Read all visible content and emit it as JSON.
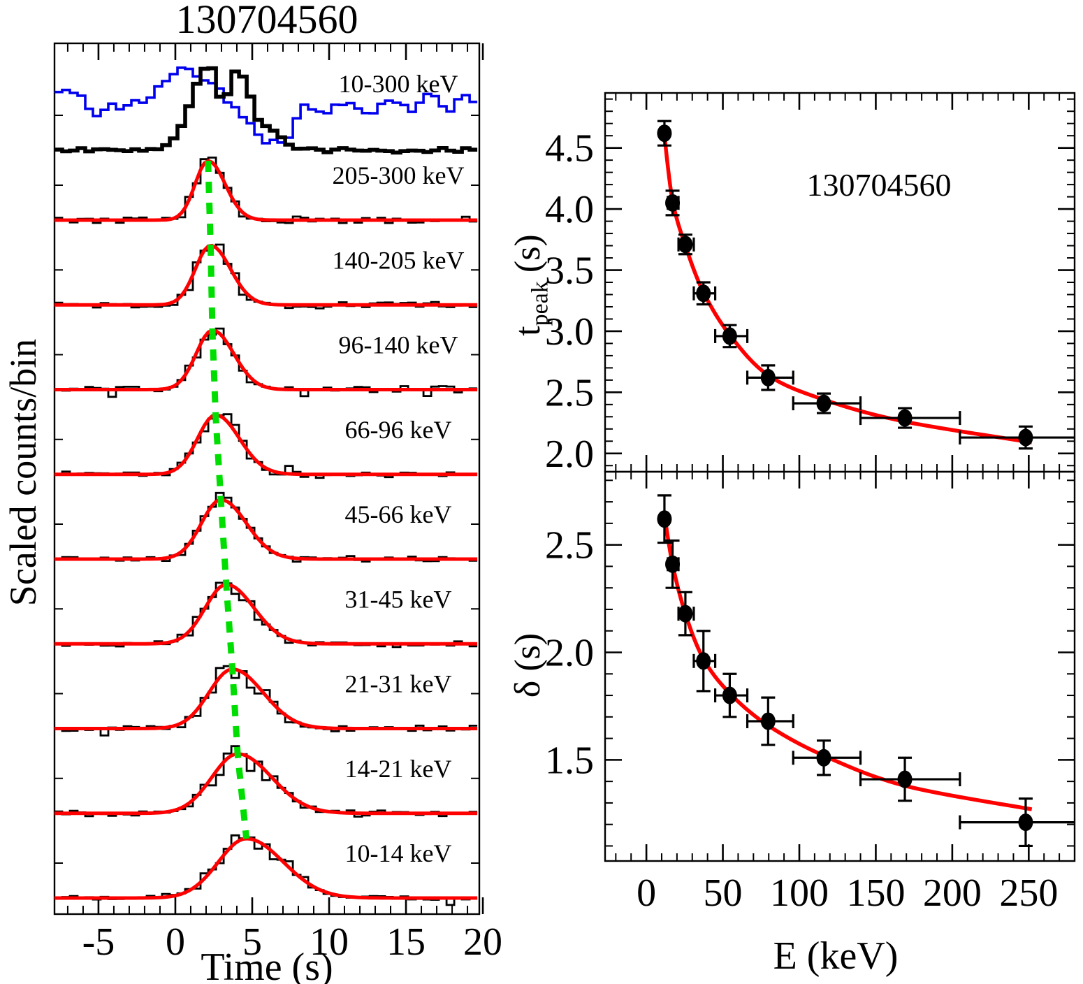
{
  "title": "130704560",
  "colors": {
    "data": "#000000",
    "fit_curve": "#ff0000",
    "peak_drift_line": "#00dd00",
    "secondary_lightcurve": "#0000ee",
    "background": "#ffffff"
  },
  "chart_data": [
    {
      "id": "stacked_lightcurves",
      "type": "line",
      "title": "130704560",
      "xlabel": "Time (s)",
      "ylabel": "Scaled counts/bin",
      "xlim": [
        -7.86,
        19.77
      ],
      "x_ticks": [
        -5,
        0,
        5,
        10,
        15,
        20
      ],
      "x_minor_step": 1,
      "bin_width_s": 0.5,
      "legend_position": "in-panel right labels",
      "grid": false,
      "total_band": {
        "label": "10-300 keV",
        "black_components": [
          {
            "t": 2.2,
            "sl": 1.15,
            "sr": 0.7,
            "a": 0.985
          },
          {
            "t": 4.05,
            "sl": 0.75,
            "sr": 0.95,
            "a": 0.93
          },
          {
            "t": 5.7,
            "sl": 0.9,
            "sr": 1.0,
            "a": 0.3
          }
        ],
        "blue_points": [
          [
            -7.8,
            0.64
          ],
          [
            -7.0,
            0.71
          ],
          [
            -6.0,
            0.61
          ],
          [
            -5.0,
            0.39
          ],
          [
            -4.3,
            0.53
          ],
          [
            -3.5,
            0.47
          ],
          [
            -2.6,
            0.59
          ],
          [
            -2.0,
            0.52
          ],
          [
            -1.2,
            0.71
          ],
          [
            -0.5,
            0.84
          ],
          [
            0.3,
            0.97
          ],
          [
            0.9,
            0.94
          ],
          [
            1.6,
            0.8
          ],
          [
            2.3,
            0.84
          ],
          [
            3.0,
            0.66
          ],
          [
            3.6,
            0.53
          ],
          [
            4.2,
            0.43
          ],
          [
            4.8,
            0.35
          ],
          [
            5.4,
            0.19
          ],
          [
            6.0,
            0.1
          ],
          [
            6.6,
            0.14
          ],
          [
            7.2,
            0.08
          ],
          [
            7.8,
            0.34
          ],
          [
            8.4,
            0.55
          ],
          [
            9.0,
            0.47
          ],
          [
            9.6,
            0.4
          ],
          [
            10.4,
            0.52
          ],
          [
            11.2,
            0.59
          ],
          [
            12.0,
            0.45
          ],
          [
            12.8,
            0.39
          ],
          [
            13.4,
            0.55
          ],
          [
            14.0,
            0.62
          ],
          [
            14.6,
            0.52
          ],
          [
            15.4,
            0.45
          ],
          [
            16.0,
            0.59
          ],
          [
            16.6,
            0.68
          ],
          [
            17.2,
            0.53
          ],
          [
            18.0,
            0.47
          ],
          [
            18.6,
            0.68
          ],
          [
            19.2,
            0.59
          ],
          [
            19.8,
            0.53
          ]
        ]
      },
      "bands": [
        {
          "label": "205-300 keV",
          "t_peak": 2.13,
          "delta": 1.21
        },
        {
          "label": "140-205 keV",
          "t_peak": 2.29,
          "delta": 1.41
        },
        {
          "label": "96-140 keV",
          "t_peak": 2.41,
          "delta": 1.51
        },
        {
          "label": "66-96 keV",
          "t_peak": 2.62,
          "delta": 1.68
        },
        {
          "label": "45-66 keV",
          "t_peak": 2.96,
          "delta": 1.8
        },
        {
          "label": "31-45 keV",
          "t_peak": 3.31,
          "delta": 1.96
        },
        {
          "label": "21-31 keV",
          "t_peak": 3.71,
          "delta": 2.18
        },
        {
          "label": "14-21 keV",
          "t_peak": 4.05,
          "delta": 2.41
        },
        {
          "label": "10-14 keV",
          "t_peak": 4.62,
          "delta": 2.62
        }
      ]
    },
    {
      "id": "tpeak_vs_E",
      "type": "scatter",
      "annotation": "130704560",
      "ylabel_main": "t",
      "ylabel_sub": "peak",
      "ylabel_unit": "(s)",
      "xlim": [
        -27,
        280
      ],
      "ylim": [
        1.85,
        4.95
      ],
      "x_ticks": [
        0,
        50,
        100,
        150,
        200,
        250
      ],
      "x_minor_step": 10,
      "y_minor_step": 0.1,
      "y_ticks": [
        {
          "v": 2.0,
          "l": "2.0"
        },
        {
          "v": 2.5,
          "l": "2.5"
        },
        {
          "v": 3.0,
          "l": "3.0"
        },
        {
          "v": 3.5,
          "l": "3.5"
        },
        {
          "v": 4.0,
          "l": "4.0"
        },
        {
          "v": 4.5,
          "l": "4.5"
        }
      ],
      "points": [
        {
          "E": 11.8,
          "E_lo": 10,
          "E_hi": 14,
          "y": 4.62,
          "err": 0.1
        },
        {
          "E": 17.1,
          "E_lo": 14,
          "E_hi": 21,
          "y": 4.05,
          "err": 0.1
        },
        {
          "E": 25.5,
          "E_lo": 21,
          "E_hi": 31,
          "y": 3.71,
          "err": 0.08
        },
        {
          "E": 37.3,
          "E_lo": 31,
          "E_hi": 45,
          "y": 3.31,
          "err": 0.09
        },
        {
          "E": 54.5,
          "E_lo": 45,
          "E_hi": 66,
          "y": 2.96,
          "err": 0.09
        },
        {
          "E": 79.6,
          "E_lo": 66,
          "E_hi": 96,
          "y": 2.62,
          "err": 0.1
        },
        {
          "E": 116,
          "E_lo": 96,
          "E_hi": 140,
          "y": 2.41,
          "err": 0.08
        },
        {
          "E": 169,
          "E_lo": 140,
          "E_hi": 205,
          "y": 2.29,
          "err": 0.08
        },
        {
          "E": 248,
          "E_lo": 205,
          "E_hi": 300,
          "y": 2.13,
          "err": 0.09
        }
      ],
      "fit_points": [
        [
          11.8,
          4.6
        ],
        [
          17.1,
          4.07
        ],
        [
          25.5,
          3.7
        ],
        [
          37.3,
          3.32
        ],
        [
          54.5,
          2.97
        ],
        [
          79.6,
          2.64
        ],
        [
          116,
          2.44
        ],
        [
          169,
          2.26
        ],
        [
          252,
          2.09
        ]
      ]
    },
    {
      "id": "delta_vs_E",
      "type": "scatter",
      "ylabel": "δ (s)",
      "xlabel": "E (keV)",
      "xlim": [
        -27,
        280
      ],
      "ylim": [
        1.03,
        2.84
      ],
      "x_ticks": [
        0,
        50,
        100,
        150,
        200,
        250
      ],
      "x_minor_step": 10,
      "y_minor_step": 0.1,
      "y_ticks": [
        {
          "v": 1.5,
          "l": "1.5"
        },
        {
          "v": 2.0,
          "l": "2.0"
        },
        {
          "v": 2.5,
          "l": "2.5"
        }
      ],
      "points": [
        {
          "E": 11.8,
          "E_lo": 10,
          "E_hi": 14,
          "y": 2.62,
          "err": 0.11
        },
        {
          "E": 17.1,
          "E_lo": 14,
          "E_hi": 21,
          "y": 2.41,
          "err": 0.11
        },
        {
          "E": 25.5,
          "E_lo": 21,
          "E_hi": 31,
          "y": 2.18,
          "err": 0.1
        },
        {
          "E": 37.3,
          "E_lo": 31,
          "E_hi": 45,
          "y": 1.96,
          "err": 0.14
        },
        {
          "E": 54.5,
          "E_lo": 45,
          "E_hi": 66,
          "y": 1.8,
          "err": 0.1
        },
        {
          "E": 79.6,
          "E_lo": 66,
          "E_hi": 96,
          "y": 1.68,
          "err": 0.11
        },
        {
          "E": 116,
          "E_lo": 96,
          "E_hi": 140,
          "y": 1.51,
          "err": 0.08
        },
        {
          "E": 169,
          "E_lo": 140,
          "E_hi": 205,
          "y": 1.41,
          "err": 0.1
        },
        {
          "E": 248,
          "E_lo": 205,
          "E_hi": 300,
          "y": 1.21,
          "err": 0.11
        }
      ],
      "fit_points": [
        [
          11.8,
          2.64
        ],
        [
          17.1,
          2.41
        ],
        [
          25.5,
          2.18
        ],
        [
          37.3,
          1.97
        ],
        [
          54.5,
          1.81
        ],
        [
          79.6,
          1.66
        ],
        [
          116,
          1.52
        ],
        [
          169,
          1.38
        ],
        [
          252,
          1.27
        ]
      ]
    }
  ]
}
